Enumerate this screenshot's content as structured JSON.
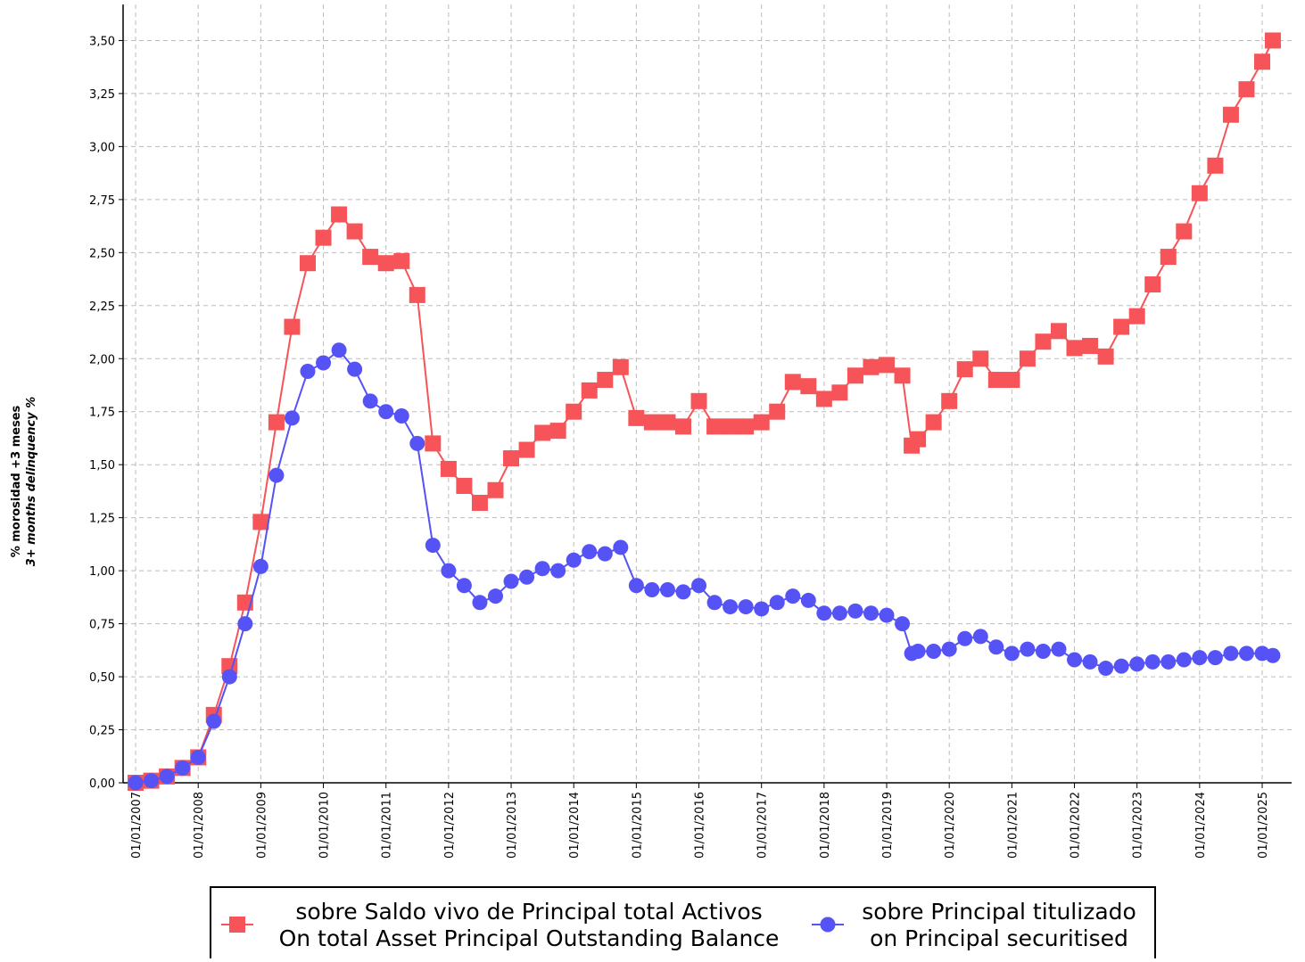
{
  "chart_data": {
    "type": "line",
    "y_label": [
      "% morosidad +3 meses",
      "3+ months delinquency %"
    ],
    "x": [
      2007.0,
      2007.25,
      2007.5,
      2007.75,
      2008.0,
      2008.25,
      2008.5,
      2008.75,
      2009.0,
      2009.25,
      2009.5,
      2009.75,
      2010.0,
      2010.25,
      2010.5,
      2010.75,
      2011.0,
      2011.25,
      2011.5,
      2011.75,
      2012.0,
      2012.25,
      2012.5,
      2012.75,
      2013.0,
      2013.25,
      2013.5,
      2013.75,
      2014.0,
      2014.25,
      2014.5,
      2014.75,
      2015.0,
      2015.25,
      2015.5,
      2015.75,
      2016.0,
      2016.25,
      2016.5,
      2016.75,
      2017.0,
      2017.25,
      2017.5,
      2017.75,
      2018.0,
      2018.25,
      2018.5,
      2018.75,
      2019.0,
      2019.25,
      2019.4,
      2019.5,
      2019.75,
      2020.0,
      2020.25,
      2020.5,
      2020.75,
      2021.0,
      2021.25,
      2021.5,
      2021.75,
      2022.0,
      2022.25,
      2022.5,
      2022.75,
      2023.0,
      2023.25,
      2023.5,
      2023.75,
      2024.0,
      2024.25,
      2024.5,
      2024.75,
      2025.0,
      2025.17
    ],
    "series": [
      {
        "name": [
          "sobre Saldo vivo de Principal total Activos",
          "On total Asset Principal Outstanding Balance"
        ],
        "color": "#f65458",
        "marker": "square",
        "values": [
          0.0,
          0.01,
          0.03,
          0.07,
          0.12,
          0.32,
          0.55,
          0.85,
          1.23,
          1.7,
          2.15,
          2.45,
          2.57,
          2.68,
          2.6,
          2.48,
          2.45,
          2.46,
          2.3,
          1.6,
          1.48,
          1.4,
          1.32,
          1.38,
          1.53,
          1.57,
          1.65,
          1.66,
          1.75,
          1.85,
          1.9,
          1.96,
          1.72,
          1.7,
          1.7,
          1.68,
          1.8,
          1.68,
          1.68,
          1.68,
          1.7,
          1.75,
          1.89,
          1.87,
          1.81,
          1.84,
          1.92,
          1.96,
          1.97,
          1.92,
          1.59,
          1.62,
          1.7,
          1.8,
          1.95,
          2.0,
          1.9,
          1.9,
          2.0,
          2.08,
          2.13,
          2.05,
          2.06,
          2.01,
          2.15,
          2.2,
          2.35,
          2.48,
          2.6,
          2.78,
          2.91,
          3.15,
          3.27,
          3.4,
          3.5
        ]
      },
      {
        "name": [
          "sobre Principal titulizado",
          "on Principal securitised"
        ],
        "color": "#5553f5",
        "marker": "circle",
        "values": [
          0.0,
          0.01,
          0.03,
          0.07,
          0.12,
          0.29,
          0.5,
          0.75,
          1.02,
          1.45,
          1.72,
          1.94,
          1.98,
          2.04,
          1.95,
          1.8,
          1.75,
          1.73,
          1.6,
          1.12,
          1.0,
          0.93,
          0.85,
          0.88,
          0.95,
          0.97,
          1.01,
          1.0,
          1.05,
          1.09,
          1.08,
          1.11,
          0.93,
          0.91,
          0.91,
          0.9,
          0.93,
          0.85,
          0.83,
          0.83,
          0.82,
          0.85,
          0.88,
          0.86,
          0.8,
          0.8,
          0.81,
          0.8,
          0.79,
          0.75,
          0.61,
          0.62,
          0.62,
          0.63,
          0.68,
          0.69,
          0.64,
          0.61,
          0.63,
          0.62,
          0.63,
          0.58,
          0.57,
          0.54,
          0.55,
          0.56,
          0.57,
          0.57,
          0.58,
          0.59,
          0.59,
          0.61,
          0.61,
          0.61,
          0.6
        ]
      }
    ],
    "xlim": [
      2006.8,
      2025.47
    ],
    "ylim": [
      0,
      3.67
    ],
    "xticks": [
      {
        "value": 2007,
        "label": "01/01/2007"
      },
      {
        "value": 2008,
        "label": "01/01/2008"
      },
      {
        "value": 2009,
        "label": "01/01/2009"
      },
      {
        "value": 2010,
        "label": "01/01/2010"
      },
      {
        "value": 2011,
        "label": "01/01/2011"
      },
      {
        "value": 2012,
        "label": "01/01/2012"
      },
      {
        "value": 2013,
        "label": "01/01/2013"
      },
      {
        "value": 2014,
        "label": "01/01/2014"
      },
      {
        "value": 2015,
        "label": "01/01/2015"
      },
      {
        "value": 2016,
        "label": "01/01/2016"
      },
      {
        "value": 2017,
        "label": "01/01/2017"
      },
      {
        "value": 2018,
        "label": "01/01/2018"
      },
      {
        "value": 2019,
        "label": "01/01/2019"
      },
      {
        "value": 2020,
        "label": "01/01/2020"
      },
      {
        "value": 2021,
        "label": "01/01/2021"
      },
      {
        "value": 2022,
        "label": "01/01/2022"
      },
      {
        "value": 2023,
        "label": "01/01/2023"
      },
      {
        "value": 2024,
        "label": "01/01/2024"
      },
      {
        "value": 2025,
        "label": "01/01/2025"
      }
    ],
    "yticks": [
      {
        "value": 0,
        "label": "0,00"
      },
      {
        "value": 0.25,
        "label": "0,25"
      },
      {
        "value": 0.5,
        "label": "0,50"
      },
      {
        "value": 0.75,
        "label": "0,75"
      },
      {
        "value": 1,
        "label": "1,00"
      },
      {
        "value": 1.25,
        "label": "1,25"
      },
      {
        "value": 1.5,
        "label": "1,50"
      },
      {
        "value": 1.75,
        "label": "1,75"
      },
      {
        "value": 2,
        "label": "2,00"
      },
      {
        "value": 2.25,
        "label": "2,25"
      },
      {
        "value": 2.5,
        "label": "2,50"
      },
      {
        "value": 2.75,
        "label": "2,75"
      },
      {
        "value": 3,
        "label": "3,00"
      },
      {
        "value": 3.25,
        "label": "3,25"
      },
      {
        "value": 3.5,
        "label": "3,50"
      }
    ],
    "grid": true
  }
}
